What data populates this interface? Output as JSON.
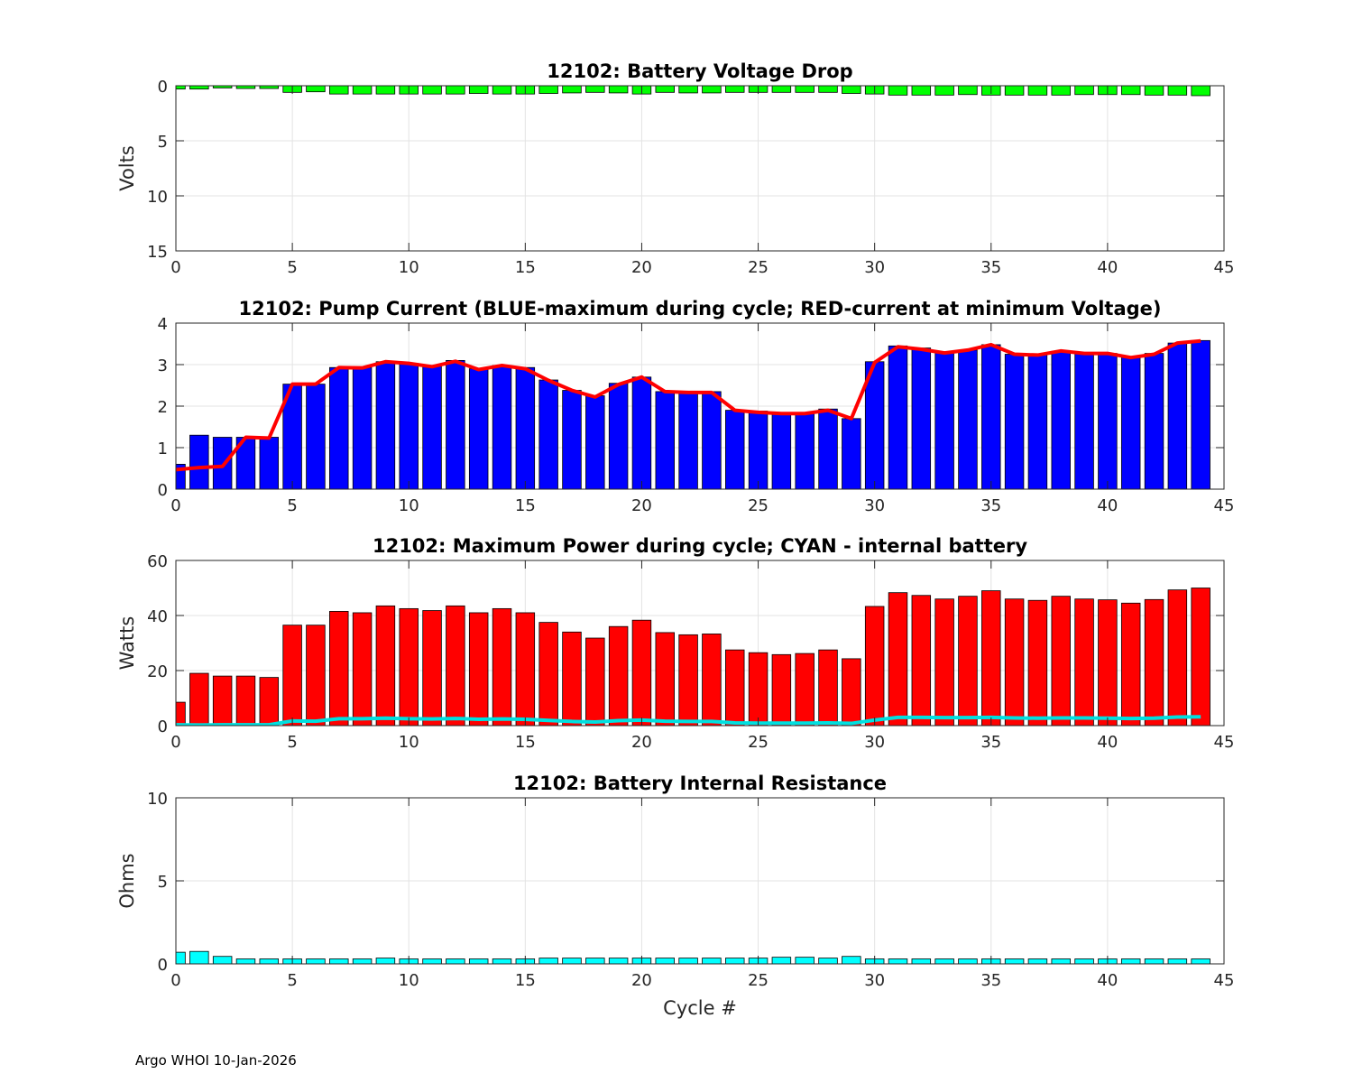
{
  "footer": "Argo WHOI 10-Jan-2026",
  "chart_data": [
    {
      "id": "voltage",
      "type": "bar",
      "title": "12102: Battery Voltage Drop",
      "xlabel": "",
      "ylabel": "Volts",
      "xlim": [
        0,
        45
      ],
      "ylim": [
        0,
        15
      ],
      "y_reversed": true,
      "xticks": [
        0,
        5,
        10,
        15,
        20,
        25,
        30,
        35,
        40,
        45
      ],
      "yticks": [
        0,
        5,
        10,
        15
      ],
      "grid": true,
      "x": [
        0,
        1,
        2,
        3,
        4,
        5,
        6,
        7,
        8,
        9,
        10,
        11,
        12,
        13,
        14,
        15,
        16,
        17,
        18,
        19,
        20,
        21,
        22,
        23,
        24,
        25,
        26,
        27,
        28,
        29,
        30,
        31,
        32,
        33,
        34,
        35,
        36,
        37,
        38,
        39,
        40,
        41,
        42,
        43,
        44
      ],
      "series": [
        {
          "name": "Voltage drop",
          "kind": "bar",
          "color": "#00ff00",
          "values": [
            0.3,
            0.3,
            0.2,
            0.25,
            0.25,
            0.6,
            0.55,
            0.75,
            0.75,
            0.75,
            0.75,
            0.75,
            0.75,
            0.7,
            0.75,
            0.75,
            0.7,
            0.65,
            0.6,
            0.65,
            0.75,
            0.6,
            0.65,
            0.65,
            0.6,
            0.6,
            0.6,
            0.6,
            0.6,
            0.7,
            0.75,
            0.85,
            0.85,
            0.85,
            0.8,
            0.85,
            0.85,
            0.85,
            0.85,
            0.8,
            0.8,
            0.8,
            0.85,
            0.85,
            0.9
          ]
        }
      ]
    },
    {
      "id": "current",
      "type": "bar",
      "title": "12102: Pump Current (BLUE-maximum during cycle; RED-current at minimum Voltage)",
      "xlabel": "",
      "ylabel": "",
      "xlim": [
        0,
        45
      ],
      "ylim": [
        0,
        4
      ],
      "xticks": [
        0,
        5,
        10,
        15,
        20,
        25,
        30,
        35,
        40,
        45
      ],
      "yticks": [
        0,
        1,
        2,
        3,
        4
      ],
      "grid": true,
      "x": [
        0,
        1,
        2,
        3,
        4,
        5,
        6,
        7,
        8,
        9,
        10,
        11,
        12,
        13,
        14,
        15,
        16,
        17,
        18,
        19,
        20,
        21,
        22,
        23,
        24,
        25,
        26,
        27,
        28,
        29,
        30,
        31,
        32,
        33,
        34,
        35,
        36,
        37,
        38,
        39,
        40,
        41,
        42,
        43,
        44
      ],
      "series": [
        {
          "name": "Maximum current",
          "kind": "bar",
          "color": "#0000ff",
          "values": [
            0.6,
            1.3,
            1.25,
            1.25,
            1.25,
            2.53,
            2.53,
            2.93,
            2.93,
            3.07,
            3.03,
            2.98,
            3.1,
            2.9,
            2.98,
            2.93,
            2.63,
            2.38,
            2.25,
            2.55,
            2.7,
            2.35,
            2.33,
            2.35,
            1.9,
            1.88,
            1.83,
            1.85,
            1.93,
            1.7,
            3.07,
            3.45,
            3.4,
            3.3,
            3.35,
            3.48,
            3.25,
            3.25,
            3.32,
            3.27,
            3.27,
            3.17,
            3.27,
            3.52,
            3.58
          ]
        },
        {
          "name": "Current at minimum voltage",
          "kind": "line",
          "color": "#ff0000",
          "values": [
            0.47,
            0.52,
            0.55,
            1.25,
            1.23,
            2.53,
            2.53,
            2.93,
            2.92,
            3.07,
            3.03,
            2.95,
            3.08,
            2.88,
            2.98,
            2.9,
            2.62,
            2.38,
            2.22,
            2.52,
            2.7,
            2.35,
            2.33,
            2.33,
            1.9,
            1.85,
            1.82,
            1.82,
            1.9,
            1.7,
            3.05,
            3.43,
            3.37,
            3.28,
            3.35,
            3.48,
            3.25,
            3.23,
            3.33,
            3.27,
            3.27,
            3.17,
            3.25,
            3.52,
            3.57
          ]
        }
      ]
    },
    {
      "id": "power",
      "type": "bar",
      "title": "12102: Maximum Power during cycle; CYAN - internal battery",
      "xlabel": "",
      "ylabel": "Watts",
      "xlim": [
        0,
        45
      ],
      "ylim": [
        0,
        60
      ],
      "xticks": [
        0,
        5,
        10,
        15,
        20,
        25,
        30,
        35,
        40,
        45
      ],
      "yticks": [
        0,
        20,
        40,
        60
      ],
      "grid": true,
      "x": [
        0,
        1,
        2,
        3,
        4,
        5,
        6,
        7,
        8,
        9,
        10,
        11,
        12,
        13,
        14,
        15,
        16,
        17,
        18,
        19,
        20,
        21,
        22,
        23,
        24,
        25,
        26,
        27,
        28,
        29,
        30,
        31,
        32,
        33,
        34,
        35,
        36,
        37,
        38,
        39,
        40,
        41,
        42,
        43,
        44
      ],
      "series": [
        {
          "name": "Maximum power",
          "kind": "bar",
          "color": "#ff0000",
          "values": [
            8.5,
            19,
            18,
            18,
            17.5,
            36.5,
            36.5,
            41.5,
            41,
            43.5,
            42.5,
            41.8,
            43.5,
            41,
            42.5,
            41,
            37.5,
            34,
            31.8,
            36,
            38.3,
            33.8,
            33,
            33.3,
            27.5,
            26.5,
            25.8,
            26.2,
            27.5,
            24.3,
            43.3,
            48.3,
            47.3,
            46,
            47,
            49,
            46,
            45.5,
            47,
            46,
            45.7,
            44.5,
            45.8,
            49.3,
            50
          ]
        },
        {
          "name": "Internal battery",
          "kind": "line",
          "color": "#00e0e0",
          "values": [
            0.3,
            0.2,
            0.3,
            0.3,
            0.3,
            1.7,
            1.6,
            2.5,
            2.5,
            2.7,
            2.5,
            2.4,
            2.6,
            2.3,
            2.4,
            2.3,
            1.9,
            1.5,
            1.3,
            1.8,
            2.0,
            1.6,
            1.5,
            1.5,
            1.0,
            0.9,
            0.9,
            0.9,
            1.0,
            0.8,
            2.0,
            3.0,
            3.0,
            2.9,
            2.9,
            3.0,
            2.8,
            2.7,
            2.8,
            2.8,
            2.7,
            2.6,
            2.7,
            3.1,
            3.2
          ]
        }
      ]
    },
    {
      "id": "resistance",
      "type": "bar",
      "title": "12102: Battery Internal Resistance",
      "xlabel": "Cycle #",
      "ylabel": "Ohms",
      "xlim": [
        0,
        45
      ],
      "ylim": [
        0,
        10
      ],
      "xticks": [
        0,
        5,
        10,
        15,
        20,
        25,
        30,
        35,
        40,
        45
      ],
      "yticks": [
        0,
        5,
        10
      ],
      "grid": true,
      "x": [
        0,
        1,
        2,
        3,
        4,
        5,
        6,
        7,
        8,
        9,
        10,
        11,
        12,
        13,
        14,
        15,
        16,
        17,
        18,
        19,
        20,
        21,
        22,
        23,
        24,
        25,
        26,
        27,
        28,
        29,
        30,
        31,
        32,
        33,
        34,
        35,
        36,
        37,
        38,
        39,
        40,
        41,
        42,
        43,
        44
      ],
      "series": [
        {
          "name": "Internal resistance",
          "kind": "bar",
          "color": "#00ffff",
          "values": [
            0.7,
            0.75,
            0.45,
            0.3,
            0.3,
            0.3,
            0.3,
            0.3,
            0.3,
            0.35,
            0.3,
            0.3,
            0.3,
            0.3,
            0.3,
            0.3,
            0.35,
            0.35,
            0.35,
            0.35,
            0.35,
            0.35,
            0.35,
            0.35,
            0.35,
            0.35,
            0.4,
            0.4,
            0.35,
            0.45,
            0.3,
            0.3,
            0.3,
            0.3,
            0.3,
            0.3,
            0.3,
            0.3,
            0.3,
            0.3,
            0.3,
            0.3,
            0.3,
            0.3,
            0.3
          ]
        }
      ]
    }
  ]
}
